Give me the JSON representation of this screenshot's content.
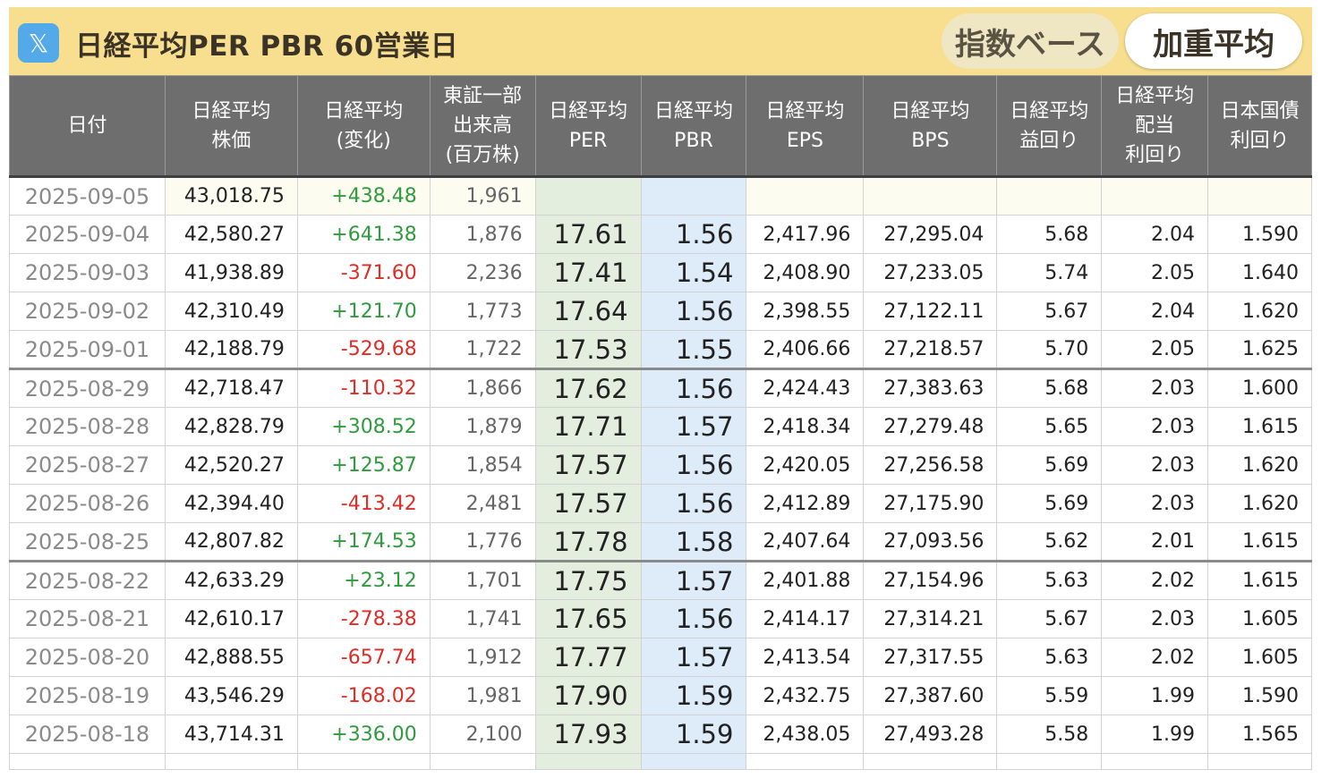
{
  "header": {
    "title": "日経平均PER PBR 60営業日",
    "social_icon": "x-logo-icon",
    "mode_buttons": [
      "指数ベース",
      "加重平均"
    ]
  },
  "table": {
    "columns": [
      "日付",
      "日経平均\n株価",
      "日経平均\n(変化)",
      "東証一部\n出来高\n(百万株)",
      "日経平均\nPER",
      "日経平均\nPBR",
      "日経平均\nEPS",
      "日経平均\nBPS",
      "日経平均\n益回り",
      "日経平均\n配当\n利回り",
      "日本国債\n利回り"
    ],
    "rows": [
      [
        "2025-09-05",
        "43,018.75",
        "+438.48",
        "1,961",
        "",
        "",
        "",
        "",
        "",
        "",
        ""
      ],
      [
        "2025-09-04",
        "42,580.27",
        "+641.38",
        "1,876",
        "17.61",
        "1.56",
        "2,417.96",
        "27,295.04",
        "5.68",
        "2.04",
        "1.590"
      ],
      [
        "2025-09-03",
        "41,938.89",
        "-371.60",
        "2,236",
        "17.41",
        "1.54",
        "2,408.90",
        "27,233.05",
        "5.74",
        "2.05",
        "1.640"
      ],
      [
        "2025-09-02",
        "42,310.49",
        "+121.70",
        "1,773",
        "17.64",
        "1.56",
        "2,398.55",
        "27,122.11",
        "5.67",
        "2.04",
        "1.620"
      ],
      [
        "2025-09-01",
        "42,188.79",
        "-529.68",
        "1,722",
        "17.53",
        "1.55",
        "2,406.66",
        "27,218.57",
        "5.70",
        "2.05",
        "1.625"
      ],
      [
        "2025-08-29",
        "42,718.47",
        "-110.32",
        "1,866",
        "17.62",
        "1.56",
        "2,424.43",
        "27,383.63",
        "5.68",
        "2.03",
        "1.600"
      ],
      [
        "2025-08-28",
        "42,828.79",
        "+308.52",
        "1,879",
        "17.71",
        "1.57",
        "2,418.34",
        "27,279.48",
        "5.65",
        "2.03",
        "1.615"
      ],
      [
        "2025-08-27",
        "42,520.27",
        "+125.87",
        "1,854",
        "17.57",
        "1.56",
        "2,420.05",
        "27,256.58",
        "5.69",
        "2.03",
        "1.620"
      ],
      [
        "2025-08-26",
        "42,394.40",
        "-413.42",
        "2,481",
        "17.57",
        "1.56",
        "2,412.89",
        "27,175.90",
        "5.69",
        "2.03",
        "1.620"
      ],
      [
        "2025-08-25",
        "42,807.82",
        "+174.53",
        "1,776",
        "17.78",
        "1.58",
        "2,407.64",
        "27,093.56",
        "5.62",
        "2.01",
        "1.615"
      ],
      [
        "2025-08-22",
        "42,633.29",
        "+23.12",
        "1,701",
        "17.75",
        "1.57",
        "2,401.88",
        "27,154.96",
        "5.63",
        "2.02",
        "1.615"
      ],
      [
        "2025-08-21",
        "42,610.17",
        "-278.38",
        "1,741",
        "17.65",
        "1.56",
        "2,414.17",
        "27,314.21",
        "5.67",
        "2.03",
        "1.605"
      ],
      [
        "2025-08-20",
        "42,888.55",
        "-657.74",
        "1,912",
        "17.77",
        "1.57",
        "2,413.54",
        "27,317.55",
        "5.63",
        "2.02",
        "1.605"
      ],
      [
        "2025-08-19",
        "43,546.29",
        "-168.02",
        "1,981",
        "17.90",
        "1.59",
        "2,432.75",
        "27,387.60",
        "5.59",
        "1.99",
        "1.590"
      ],
      [
        "2025-08-18",
        "43,714.31",
        "+336.00",
        "2,100",
        "17.93",
        "1.59",
        "2,438.05",
        "27,493.28",
        "5.58",
        "1.99",
        "1.565"
      ]
    ],
    "week_break_before_rows": [
      5,
      10
    ],
    "colors": {
      "title_bar": "#f7df8f",
      "header_bg": "#6e6e6e",
      "per_bg": "#e4eedf",
      "pbr_bg": "#deebf8",
      "positive": "#2f9a3e",
      "negative": "#de2d26",
      "date_text": "#8a8a8a"
    }
  }
}
